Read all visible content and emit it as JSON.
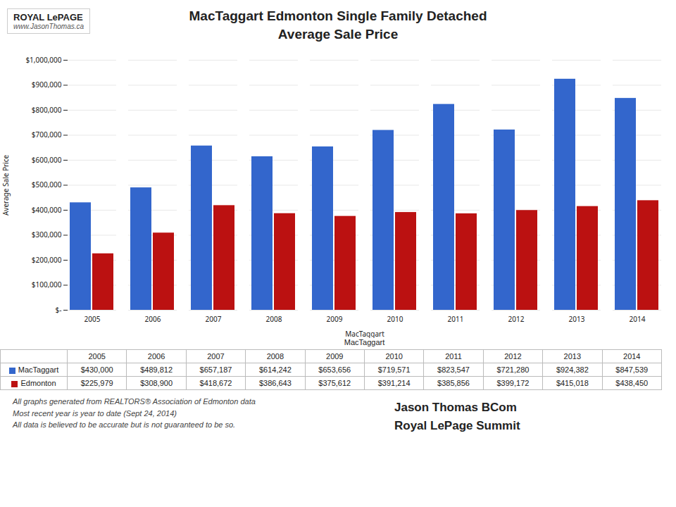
{
  "chart_data": {
    "type": "bar",
    "title": "MacTaggart Edmonton Single Family Detached\nAverage Sale Price",
    "xlabel": "MacTaggart",
    "ylabel": "Average Sale Price",
    "categories": [
      "2005",
      "2006",
      "2007",
      "2008",
      "2009",
      "2010",
      "2011",
      "2012",
      "2013",
      "2014"
    ],
    "series": [
      {
        "name": "MacTaggart",
        "color": "#3366CC",
        "values": [
          430000,
          489812,
          657187,
          614242,
          653656,
          719571,
          823547,
          721280,
          924382,
          847539
        ],
        "value_labels": [
          "$430,000",
          "$489,812",
          "$657,187",
          "$614,242",
          "$653,656",
          "$719,571",
          "$823,547",
          "$721,280",
          "$924,382",
          "$847,539"
        ]
      },
      {
        "name": "Edmonton",
        "color": "#BB1111",
        "values": [
          225979,
          308900,
          418672,
          386643,
          375612,
          391214,
          385856,
          399172,
          415018,
          438450
        ],
        "value_labels": [
          "$225,979",
          "$308,900",
          "$418,672",
          "$386,643",
          "$375,612",
          "$391,214",
          "$385,856",
          "$399,172",
          "$415,018",
          "$438,450"
        ]
      }
    ],
    "ylim": [
      0,
      1000000
    ],
    "yticks": [
      {
        "value": 0,
        "label": "$-"
      },
      {
        "value": 100000,
        "label": "$100,000"
      },
      {
        "value": 200000,
        "label": "$200,000"
      },
      {
        "value": 300000,
        "label": "$300,000"
      },
      {
        "value": 400000,
        "label": "$400,000"
      },
      {
        "value": 500000,
        "label": "$500,000"
      },
      {
        "value": 600000,
        "label": "$600,000"
      },
      {
        "value": 700000,
        "label": "$700,000"
      },
      {
        "value": 800000,
        "label": "$800,000"
      },
      {
        "value": 900000,
        "label": "$900,000"
      },
      {
        "value": 1000000,
        "label": "$1,000,000"
      }
    ],
    "grid": true,
    "annotations": [
      "MacTaggart",
      "All graphs generated from REALTORS® Association of Edmonton data",
      "Most recent year is year to date (Sept 24, 2014)",
      "All data is believed to be accurate but is not guaranteed to be so.",
      "Jason Thomas BCom",
      "Royal LePage Summit",
      "ROYAL LePAGE",
      "www.JasonThomas.ca"
    ]
  }
}
